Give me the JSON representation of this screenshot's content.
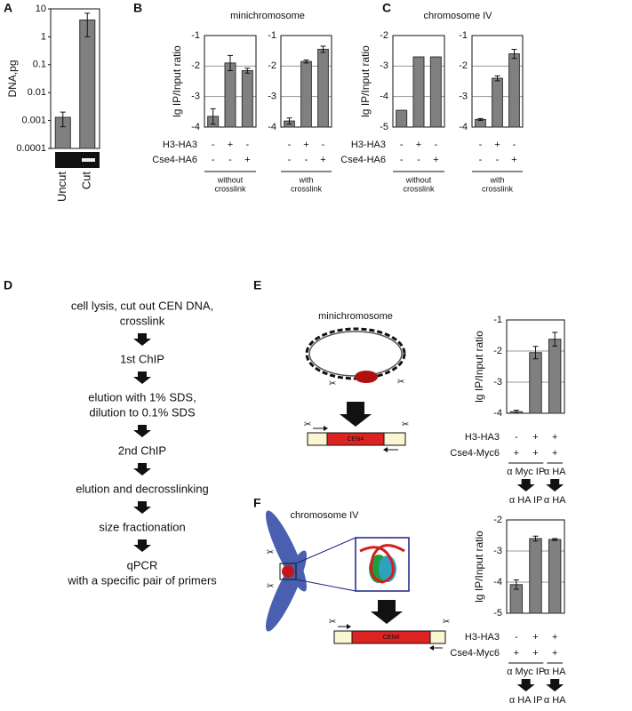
{
  "panel_labels": [
    "A",
    "B",
    "C",
    "D",
    "E",
    "F"
  ],
  "panel_titles": {
    "B": "minichromosome",
    "C": "chromosome IV"
  },
  "flowchart": {
    "steps": [
      [
        "cell lysis, cut out CEN DNA,",
        "crosslink"
      ],
      [
        "1st ChIP"
      ],
      [
        "elution with 1% SDS,",
        "dilution to 0.1% SDS"
      ],
      [
        "2nd ChIP"
      ],
      [
        "elution and decrosslinking"
      ],
      [
        "size fractionation"
      ],
      [
        "qPCR",
        "with a specific pair of primers"
      ]
    ]
  },
  "diagram_E": {
    "title": "minichromosome",
    "region": "CEN4"
  },
  "diagram_F": {
    "title": "chromosome IV",
    "region": "CEN4"
  },
  "chart_data": [
    {
      "type": "bar",
      "ylabel": "DNA,pg",
      "log_y": true,
      "categories": [
        "Uncut",
        "Cut"
      ],
      "values": [
        0.0013,
        4
      ],
      "errors": [
        0.0007,
        3
      ],
      "ylim": [
        0.0001,
        10
      ],
      "yticks": [
        0.0001,
        0.001,
        0.01,
        0.1,
        1,
        10
      ],
      "color": "#808080"
    },
    {
      "type": "bar",
      "ylabel": "lg IP/Input ratio",
      "values": [
        -3.65,
        -1.9,
        -2.15
      ],
      "errors": [
        0.25,
        0.25,
        0.08
      ],
      "ylim": [
        -4,
        -1
      ],
      "yticks": [
        -4,
        -3,
        -2,
        -1
      ],
      "grid": true,
      "color": "#808080",
      "conditions": [
        {
          "name": "H3-HA3",
          "labels": [
            "-",
            "+",
            "-"
          ]
        },
        {
          "name": "Cse4-HA6",
          "labels": [
            "-",
            "-",
            "+"
          ]
        }
      ],
      "footer": [
        "without",
        "crosslink"
      ]
    },
    {
      "type": "bar",
      "values": [
        -3.8,
        -1.85,
        -1.45
      ],
      "errors": [
        0.1,
        0.05,
        0.1
      ],
      "ylim": [
        -4,
        -1
      ],
      "yticks": [
        -4,
        -3,
        -2,
        -1
      ],
      "grid": true,
      "color": "#808080",
      "conditions": [
        {
          "labels": [
            "-",
            "+",
            "-"
          ]
        },
        {
          "labels": [
            "-",
            "-",
            "+"
          ]
        }
      ],
      "footer": [
        "with",
        "crosslink"
      ]
    },
    {
      "type": "bar",
      "ylabel": "lg IP/Input ratio",
      "values": [
        -4.45,
        -2.7,
        -2.7
      ],
      "ylim": [
        -5,
        -2
      ],
      "yticks": [
        -5,
        -4,
        -3,
        -2
      ],
      "grid": true,
      "color": "#808080",
      "conditions": [
        {
          "name": "H3-HA3",
          "labels": [
            "-",
            "+",
            "-"
          ]
        },
        {
          "name": "Cse4-HA6",
          "labels": [
            "-",
            "-",
            "+"
          ]
        }
      ],
      "footer": [
        "without",
        "crosslink"
      ]
    },
    {
      "type": "bar",
      "values": [
        -3.75,
        -2.4,
        -1.6
      ],
      "errors": [
        0.03,
        0.08,
        0.15
      ],
      "ylim": [
        -4,
        -1
      ],
      "yticks": [
        -4,
        -3,
        -2,
        -1
      ],
      "grid": true,
      "color": "#808080",
      "conditions": [
        {
          "labels": [
            "-",
            "+",
            "-"
          ]
        },
        {
          "labels": [
            "-",
            "-",
            "+"
          ]
        }
      ],
      "footer": [
        "with",
        "crosslink"
      ]
    },
    {
      "type": "bar",
      "ylabel": "lg IP/Input ratio",
      "values": [
        -3.95,
        -2.05,
        -1.62
      ],
      "errors": [
        0.05,
        0.2,
        0.22
      ],
      "ylim": [
        -4,
        -1
      ],
      "yticks": [
        -4,
        -3,
        -2,
        -1
      ],
      "grid": true,
      "color": "#808080",
      "conditions": [
        {
          "name": "H3-HA3",
          "labels": [
            "-",
            "+",
            "+"
          ]
        },
        {
          "name": "Cse4-Myc6",
          "labels": [
            "+",
            "+",
            "+"
          ]
        }
      ],
      "groups": [
        {
          "label": "α Myc IP",
          "target": "α HA IP"
        },
        {
          "label": "α HA",
          "target": "α HA"
        }
      ]
    },
    {
      "type": "bar",
      "ylabel": "lg IP/Input ratio",
      "values": [
        -4.08,
        -2.6,
        -2.63
      ],
      "errors": [
        0.15,
        0.08,
        0.03
      ],
      "ylim": [
        -5,
        -2
      ],
      "yticks": [
        -5,
        -4,
        -3,
        -2
      ],
      "grid": true,
      "color": "#808080",
      "conditions": [
        {
          "name": "H3-HA3",
          "labels": [
            "-",
            "+",
            "+"
          ]
        },
        {
          "name": "Cse4-Myc6",
          "labels": [
            "+",
            "+",
            "+"
          ]
        }
      ],
      "groups": [
        {
          "label": "α Myc IP",
          "target": "α HA IP"
        },
        {
          "label": "α HA",
          "target": "α HA"
        }
      ]
    }
  ]
}
